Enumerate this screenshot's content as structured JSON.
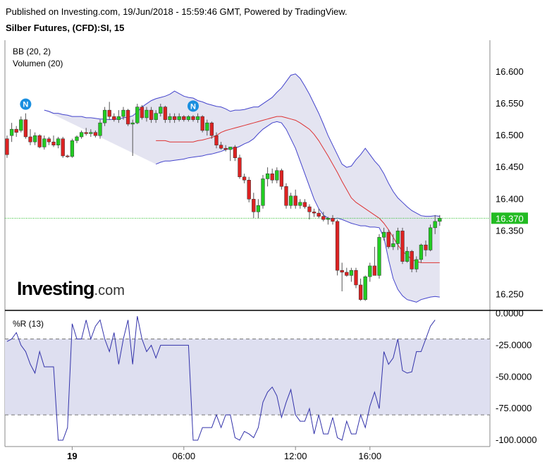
{
  "header": {
    "published": "Published on Investing.com, 19/Jun/2018 - 15:59:46 GMT, Powered by TradingView.",
    "instrument": "Silber Futures, (CFD):SI, 15"
  },
  "indicators": {
    "bb": "BB (20, 2)",
    "volume": "Volumen (20)",
    "williams": "%R (13)"
  },
  "logo": {
    "main": "Investing",
    "suffix": ".com"
  },
  "colors": {
    "up": "#22cc22",
    "down": "#dd2222",
    "band": "#4444cc",
    "band_fill": "#ddddee",
    "basis": "#dd3333",
    "price_line": "#22bb22",
    "wr_line": "#3333aa",
    "wr_fill": "#dedff0"
  },
  "events": [
    {
      "label": "N",
      "index": 4
    },
    {
      "label": "N",
      "index": 40
    }
  ],
  "chart_data": [
    {
      "type": "candlestick",
      "title": "",
      "yticks": [
        "16.600",
        "16.550",
        "16.500",
        "16.450",
        "16.400",
        "16.350",
        "16.250"
      ],
      "ylim": [
        16.225,
        16.65
      ],
      "last_price": {
        "value": 16.37,
        "label": "16.370"
      },
      "ohlc": [
        [
          16.495,
          16.5,
          16.465,
          16.47
        ],
        [
          16.5,
          16.52,
          16.49,
          16.51
        ],
        [
          16.51,
          16.515,
          16.498,
          16.505
        ],
        [
          16.508,
          16.53,
          16.505,
          16.525
        ],
        [
          16.525,
          16.535,
          16.495,
          16.498
        ],
        [
          16.498,
          16.51,
          16.485,
          16.49
        ],
        [
          16.49,
          16.505,
          16.485,
          16.5
        ],
        [
          16.5,
          16.502,
          16.48,
          16.482
        ],
        [
          16.482,
          16.5,
          16.478,
          16.495
        ],
        [
          16.495,
          16.498,
          16.485,
          16.49
        ],
        [
          16.49,
          16.5,
          16.482,
          16.485
        ],
        [
          16.485,
          16.498,
          16.48,
          16.495
        ],
        [
          16.495,
          16.498,
          16.465,
          16.468
        ],
        [
          16.468,
          16.47,
          16.465,
          16.467
        ],
        [
          16.467,
          16.495,
          16.465,
          16.492
        ],
        [
          16.492,
          16.5,
          16.488,
          16.498
        ],
        [
          16.498,
          16.508,
          16.495,
          16.505
        ],
        [
          16.505,
          16.512,
          16.5,
          16.503
        ],
        [
          16.503,
          16.51,
          16.498,
          16.505
        ],
        [
          16.505,
          16.508,
          16.497,
          16.5
        ],
        [
          16.5,
          16.525,
          16.495,
          16.52
        ],
        [
          16.52,
          16.545,
          16.515,
          16.54
        ],
        [
          16.54,
          16.553,
          16.525,
          16.53
        ],
        [
          16.53,
          16.535,
          16.522,
          16.525
        ],
        [
          16.525,
          16.54,
          16.52,
          16.53
        ],
        [
          16.53,
          16.545,
          16.525,
          16.54
        ],
        [
          16.54,
          16.542,
          16.515,
          16.518
        ],
        [
          16.518,
          16.525,
          16.468,
          16.52
        ],
        [
          16.52,
          16.55,
          16.518,
          16.545
        ],
        [
          16.545,
          16.548,
          16.525,
          16.528
        ],
        [
          16.528,
          16.545,
          16.522,
          16.54
        ],
        [
          16.54,
          16.545,
          16.52,
          16.525
        ],
        [
          16.525,
          16.54,
          16.52,
          16.535
        ],
        [
          16.535,
          16.55,
          16.53,
          16.545
        ],
        [
          16.545,
          16.547,
          16.52,
          16.525
        ],
        [
          16.525,
          16.535,
          16.52,
          16.53
        ],
        [
          16.53,
          16.535,
          16.52,
          16.525
        ],
        [
          16.525,
          16.535,
          16.522,
          16.53
        ],
        [
          16.53,
          16.532,
          16.522,
          16.525
        ],
        [
          16.525,
          16.532,
          16.522,
          16.53
        ],
        [
          16.53,
          16.532,
          16.522,
          16.525
        ],
        [
          16.525,
          16.535,
          16.52,
          16.53
        ],
        [
          16.53,
          16.532,
          16.505,
          16.508
        ],
        [
          16.508,
          16.525,
          16.5,
          16.52
        ],
        [
          16.52,
          16.522,
          16.495,
          16.5
        ],
        [
          16.5,
          16.505,
          16.48,
          16.485
        ],
        [
          16.485,
          16.49,
          16.478,
          16.48
        ],
        [
          16.48,
          16.485,
          16.475,
          16.478
        ],
        [
          16.478,
          16.482,
          16.46,
          16.482
        ],
        [
          16.482,
          16.485,
          16.46,
          16.465
        ],
        [
          16.465,
          16.47,
          16.432,
          16.435
        ],
        [
          16.435,
          16.44,
          16.425,
          16.43
        ],
        [
          16.43,
          16.435,
          16.395,
          16.4
        ],
        [
          16.4,
          16.41,
          16.37,
          16.38
        ],
        [
          16.38,
          16.4,
          16.37,
          16.39
        ],
        [
          16.39,
          16.438,
          16.385,
          16.432
        ],
        [
          16.432,
          16.45,
          16.42,
          16.44
        ],
        [
          16.44,
          16.448,
          16.425,
          16.43
        ],
        [
          16.43,
          16.45,
          16.425,
          16.445
        ],
        [
          16.445,
          16.448,
          16.415,
          16.42
        ],
        [
          16.42,
          16.425,
          16.385,
          16.39
        ],
        [
          16.39,
          16.41,
          16.385,
          16.405
        ],
        [
          16.405,
          16.415,
          16.385,
          16.39
        ],
        [
          16.39,
          16.4,
          16.385,
          16.395
        ],
        [
          16.395,
          16.4,
          16.385,
          16.388
        ],
        [
          16.388,
          16.392,
          16.368,
          16.38
        ],
        [
          16.38,
          16.385,
          16.372,
          16.378
        ],
        [
          16.378,
          16.385,
          16.37,
          16.373
        ],
        [
          16.373,
          16.38,
          16.365,
          16.368
        ],
        [
          16.368,
          16.372,
          16.36,
          16.37
        ],
        [
          16.37,
          16.375,
          16.36,
          16.365
        ],
        [
          16.365,
          16.368,
          16.28,
          16.288
        ],
        [
          16.288,
          16.3,
          16.255,
          16.285
        ],
        [
          16.285,
          16.292,
          16.278,
          16.28
        ],
        [
          16.28,
          16.292,
          16.27,
          16.288
        ],
        [
          16.288,
          16.292,
          16.26,
          16.265
        ],
        [
          16.265,
          16.275,
          16.24,
          16.242
        ],
        [
          16.242,
          16.28,
          16.24,
          16.278
        ],
        [
          16.278,
          16.3,
          16.27,
          16.295
        ],
        [
          16.295,
          16.325,
          16.28,
          16.28
        ],
        [
          16.28,
          16.345,
          16.275,
          16.34
        ],
        [
          16.34,
          16.355,
          16.335,
          16.348
        ],
        [
          16.348,
          16.352,
          16.322,
          16.325
        ],
        [
          16.325,
          16.345,
          16.32,
          16.33
        ],
        [
          16.33,
          16.355,
          16.32,
          16.35
        ],
        [
          16.35,
          16.355,
          16.298,
          16.302
        ],
        [
          16.302,
          16.325,
          16.3,
          16.318
        ],
        [
          16.318,
          16.32,
          16.285,
          16.29
        ],
        [
          16.29,
          16.31,
          16.285,
          16.305
        ],
        [
          16.305,
          16.33,
          16.3,
          16.328
        ],
        [
          16.328,
          16.335,
          16.31,
          16.32
        ],
        [
          16.32,
          16.36,
          16.318,
          16.355
        ],
        [
          16.355,
          16.375,
          16.345,
          16.365
        ],
        [
          16.365,
          16.375,
          16.358,
          16.37
        ]
      ],
      "bb_upper": [
        16.54,
        16.538,
        16.535,
        16.535,
        16.533,
        16.532,
        16.53,
        16.53,
        16.53,
        16.528,
        16.528,
        16.527,
        16.526,
        16.526,
        16.525,
        16.526,
        16.526,
        16.528,
        16.529,
        16.531,
        16.537,
        16.545,
        16.55,
        16.555,
        16.558,
        16.56,
        16.562,
        16.565,
        16.57,
        16.566,
        16.562,
        16.56,
        16.559,
        16.555,
        16.553,
        16.55,
        16.548,
        16.546,
        16.545,
        16.542,
        16.538,
        16.54,
        16.54,
        16.541,
        16.543,
        16.545,
        16.545,
        16.55,
        16.555,
        16.56,
        16.568,
        16.575,
        16.585,
        16.595,
        16.597,
        16.59,
        16.578,
        16.565,
        16.55,
        16.535,
        16.518,
        16.5,
        16.485,
        16.47,
        16.455,
        16.45,
        16.452,
        16.462,
        16.47,
        16.48,
        16.47,
        16.46,
        16.452,
        16.44,
        16.425,
        16.412,
        16.402,
        16.395,
        16.388,
        16.382,
        16.378,
        16.374,
        16.373,
        16.373,
        16.374,
        16.373
      ],
      "bb_basis": [
        16.492,
        16.492,
        16.492,
        16.49,
        16.49,
        16.49,
        16.49,
        16.49,
        16.49,
        16.492,
        16.493,
        16.495,
        16.497,
        16.5,
        16.505,
        16.508,
        16.51,
        16.512,
        16.514,
        16.516,
        16.518,
        16.52,
        16.522,
        16.524,
        16.526,
        16.528,
        16.53,
        16.53,
        16.528,
        16.526,
        16.524,
        16.52,
        16.515,
        16.51,
        16.502,
        16.492,
        16.48,
        16.468,
        16.455,
        16.442,
        16.428,
        16.415,
        16.402,
        16.395,
        16.39,
        16.385,
        16.38,
        16.375,
        16.37,
        16.362,
        16.352,
        16.34,
        16.328,
        16.318,
        16.312,
        16.305,
        16.302,
        16.3,
        16.3,
        16.3,
        16.3,
        16.3
      ],
      "bb_lower": [
        16.455,
        16.458,
        16.46,
        16.46,
        16.461,
        16.462,
        16.463,
        16.465,
        16.466,
        16.467,
        16.468,
        16.47,
        16.471,
        16.473,
        16.475,
        16.478,
        16.48,
        16.48,
        16.483,
        16.487,
        16.49,
        16.495,
        16.503,
        16.51,
        16.515,
        16.52,
        16.522,
        16.52,
        16.51,
        16.495,
        16.48,
        16.46,
        16.44,
        16.42,
        16.4,
        16.385,
        16.375,
        16.37,
        16.368,
        16.37,
        16.368,
        16.365,
        16.362,
        16.36,
        16.358,
        16.358,
        16.356,
        16.356,
        16.355,
        16.34,
        16.305,
        16.275,
        16.258,
        16.248,
        16.242,
        16.24,
        16.238,
        16.242,
        16.244,
        16.246,
        16.247,
        16.246
      ]
    },
    {
      "type": "line",
      "title": "",
      "yticks": [
        "0.0000",
        "-25.0000",
        "-50.0000",
        "-75.0000",
        "-100.0000"
      ],
      "ylim": [
        -105,
        2
      ],
      "levels": [
        -20,
        -80
      ],
      "xticks": [
        {
          "label": "19",
          "index": 14
        },
        {
          "label": "06:00",
          "index": 38
        },
        {
          "label": "12:00",
          "index": 62
        },
        {
          "label": "16:00",
          "index": 78
        }
      ],
      "values": [
        -22,
        -20,
        -15,
        -25,
        -30,
        -40,
        -47,
        -30,
        -42,
        -42,
        -42,
        -100,
        -100,
        -90,
        -8,
        -20,
        -20,
        -5,
        -20,
        -10,
        -5,
        -20,
        -30,
        -15,
        -40,
        -20,
        -5,
        -40,
        -2,
        -20,
        -30,
        -25,
        -35,
        -25,
        -25,
        -25,
        -25,
        -25,
        -25,
        -25,
        -100,
        -100,
        -90,
        -90,
        -90,
        -80,
        -90,
        -80,
        -80,
        -98,
        -100,
        -93,
        -95,
        -98,
        -90,
        -70,
        -62,
        -58,
        -65,
        -82,
        -70,
        -60,
        -80,
        -85,
        -85,
        -75,
        -95,
        -80,
        -95,
        -95,
        -82,
        -98,
        -100,
        -85,
        -95,
        -95,
        -80,
        -90,
        -73,
        -62,
        -75,
        -30,
        -40,
        -35,
        -20,
        -45,
        -47,
        -46,
        -30,
        -30,
        -20,
        -10,
        -5
      ],
      "xlabel": "",
      "ylabel": ""
    }
  ]
}
